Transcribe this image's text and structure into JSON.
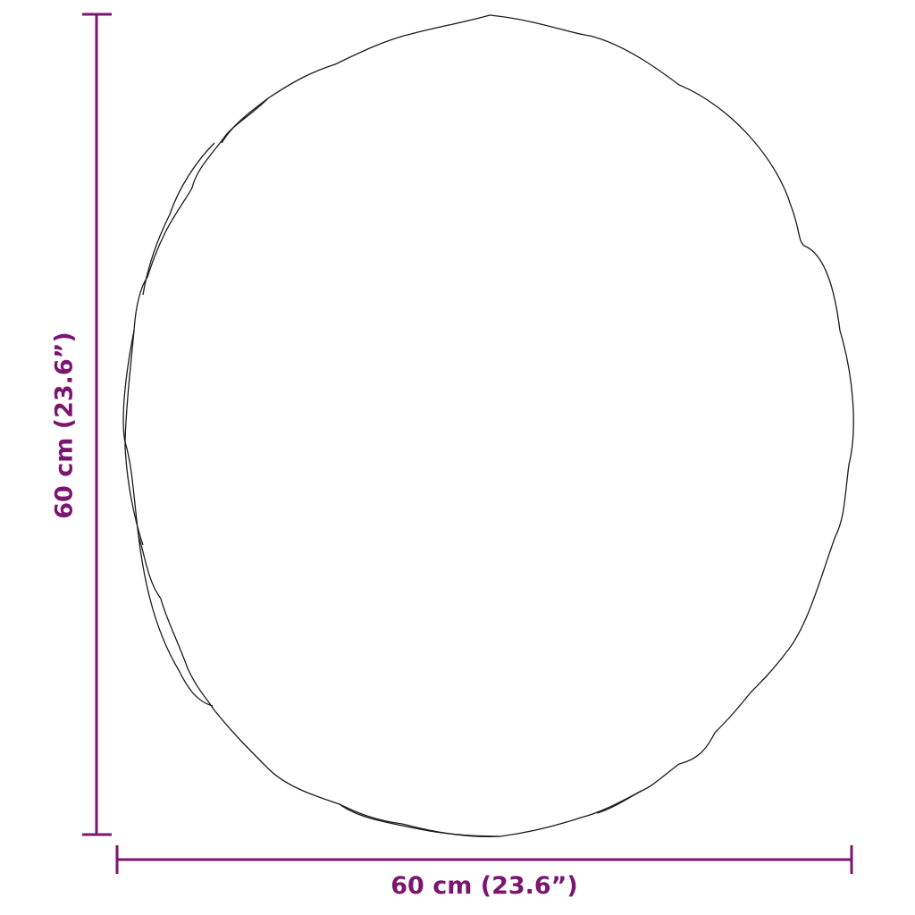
{
  "diagram": {
    "subject": "round mirror outline",
    "dimensions": {
      "width_label": "60 cm (23.6”)",
      "height_label": "60 cm (23.6”)"
    },
    "colors": {
      "dimension": "#7a1670",
      "outline": "#1a1a1a"
    }
  }
}
